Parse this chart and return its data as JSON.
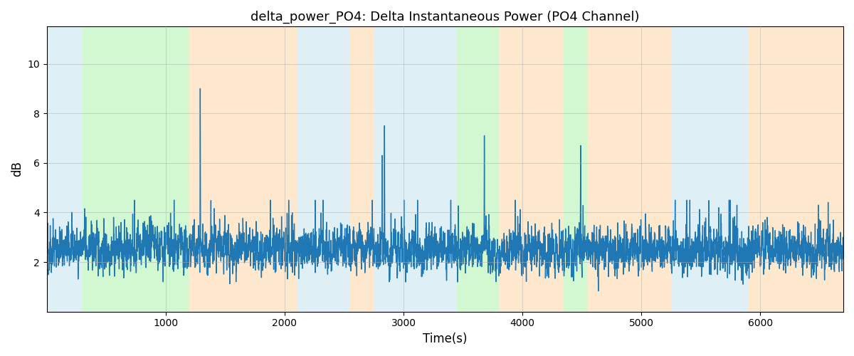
{
  "title": "delta_power_PO4: Delta Instantaneous Power (PO4 Channel)",
  "xlabel": "Time(s)",
  "ylabel": "dB",
  "xlim": [
    0,
    6700
  ],
  "ylim": [
    0,
    11.5
  ],
  "yticks": [
    2,
    4,
    6,
    8,
    10
  ],
  "xticks": [
    1000,
    2000,
    3000,
    4000,
    5000,
    6000
  ],
  "bg_regions": [
    {
      "xmin": 0,
      "xmax": 300,
      "color": "#add8e6",
      "alpha": 0.4
    },
    {
      "xmin": 300,
      "xmax": 1200,
      "color": "#90ee90",
      "alpha": 0.4
    },
    {
      "xmin": 1200,
      "xmax": 2100,
      "color": "#ffd59e",
      "alpha": 0.5
    },
    {
      "xmin": 2100,
      "xmax": 2550,
      "color": "#add8e6",
      "alpha": 0.4
    },
    {
      "xmin": 2550,
      "xmax": 2750,
      "color": "#ffd59e",
      "alpha": 0.5
    },
    {
      "xmin": 2750,
      "xmax": 3450,
      "color": "#add8e6",
      "alpha": 0.4
    },
    {
      "xmin": 3450,
      "xmax": 3800,
      "color": "#90ee90",
      "alpha": 0.4
    },
    {
      "xmin": 3800,
      "xmax": 4350,
      "color": "#ffd59e",
      "alpha": 0.5
    },
    {
      "xmin": 4350,
      "xmax": 4550,
      "color": "#90ee90",
      "alpha": 0.4
    },
    {
      "xmin": 4550,
      "xmax": 5250,
      "color": "#ffd59e",
      "alpha": 0.5
    },
    {
      "xmin": 5250,
      "xmax": 5900,
      "color": "#add8e6",
      "alpha": 0.4
    },
    {
      "xmin": 5900,
      "xmax": 6700,
      "color": "#ffd59e",
      "alpha": 0.5
    }
  ],
  "line_color": "#1f77b4",
  "line_width": 1.0,
  "grid_color": "#b0b0b0",
  "grid_alpha": 0.7,
  "grid_linestyle": "-",
  "grid_linewidth": 0.5,
  "figsize": [
    12,
    5
  ],
  "dpi": 100,
  "seed": 42,
  "n_points": 6700,
  "spikes": [
    {
      "idx": 1290,
      "height": 9.0
    },
    {
      "idx": 2840,
      "height": 7.5
    },
    {
      "idx": 2820,
      "height": 6.3
    },
    {
      "idx": 3680,
      "height": 7.1
    },
    {
      "idx": 4490,
      "height": 6.7
    }
  ]
}
